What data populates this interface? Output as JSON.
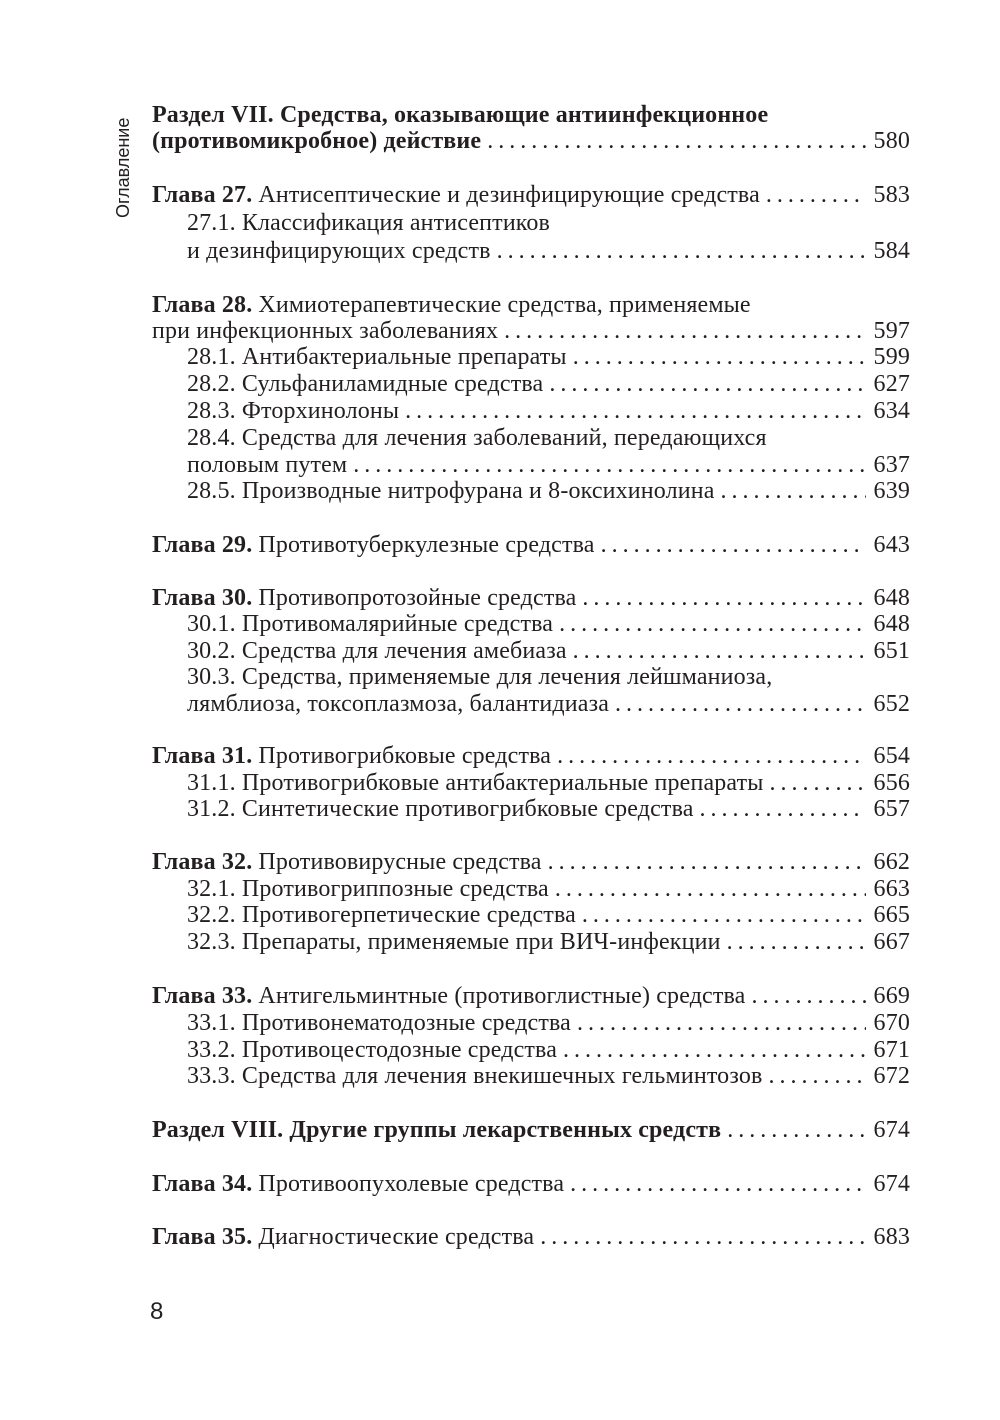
{
  "running_head": "Оглавление",
  "page_number": "8",
  "toc": [
    {
      "lines": [
        {
          "bold": "Раздел VII. Средства, оказывающие антиинфекционное",
          "text": ""
        },
        {
          "bold": "(противомикробное) действие",
          "text": "",
          "page": "580"
        }
      ]
    },
    {
      "lines": [
        {
          "bold": "Глава 27.",
          "text": "Антисептические и дезинфицирующие средства",
          "page": "583"
        }
      ]
    },
    {
      "sub": true,
      "lines": [
        {
          "text": "27.1. Классификация антисептиков"
        },
        {
          "text": "и дезинфицирующих средств",
          "page": "584"
        }
      ]
    },
    {
      "lines": [
        {
          "bold": "Глава 28.",
          "text": "Химиотерапевтические средства, применяемые"
        },
        {
          "text": "при инфекционных заболеваниях",
          "page": "597"
        }
      ]
    },
    {
      "sub": true,
      "lines": [
        {
          "text": "28.1. Антибактериальные препараты",
          "page": "599"
        }
      ]
    },
    {
      "sub": true,
      "lines": [
        {
          "text": "28.2. Сульфаниламидные средства",
          "page": "627"
        }
      ]
    },
    {
      "sub": true,
      "lines": [
        {
          "text": "28.3. Фторхинолоны",
          "page": "634"
        }
      ]
    },
    {
      "sub": true,
      "lines": [
        {
          "text": "28.4. Средства для лечения заболеваний, передающихся"
        },
        {
          "text": "половым путем",
          "page": "637"
        }
      ]
    },
    {
      "sub": true,
      "lines": [
        {
          "text": "28.5. Производные нитрофурана и 8-оксихинолина",
          "page": "639"
        }
      ]
    },
    {
      "lines": [
        {
          "bold": "Глава 29.",
          "text": "Противотуберкулезные средства",
          "page": "643"
        }
      ]
    },
    {
      "lines": [
        {
          "bold": "Глава 30.",
          "text": "Противопротозойные средства",
          "page": "648"
        }
      ]
    },
    {
      "sub": true,
      "lines": [
        {
          "text": "30.1. Противомалярийные средства",
          "page": "648"
        }
      ]
    },
    {
      "sub": true,
      "lines": [
        {
          "text": "30.2. Средства для лечения амебиаза",
          "page": "651"
        }
      ]
    },
    {
      "sub": true,
      "lines": [
        {
          "text": "30.3. Средства, применяемые для лечения лейшманиоза,"
        },
        {
          "text": "лямблиоза, токсоплазмоза, балантидиаза",
          "page": "652"
        }
      ]
    },
    {
      "lines": [
        {
          "bold": "Глава 31.",
          "text": "Противогрибковые средства",
          "page": "654"
        }
      ]
    },
    {
      "sub": true,
      "lines": [
        {
          "text": "31.1. Противогрибковые антибактериальные препараты",
          "page": "656"
        }
      ]
    },
    {
      "sub": true,
      "lines": [
        {
          "text": "31.2. Синтетические противогрибковые средства",
          "page": "657"
        }
      ]
    },
    {
      "lines": [
        {
          "bold": "Глава 32.",
          "text": "Противовирусные средства",
          "page": "662"
        }
      ]
    },
    {
      "sub": true,
      "lines": [
        {
          "text": "32.1. Противогриппозные средства",
          "page": "663"
        }
      ]
    },
    {
      "sub": true,
      "lines": [
        {
          "text": "32.2. Противогерпетические средства",
          "page": "665"
        }
      ]
    },
    {
      "sub": true,
      "lines": [
        {
          "text": "32.3. Препараты, применяемые при ВИЧ-инфекции",
          "page": "667"
        }
      ]
    },
    {
      "lines": [
        {
          "bold": "Глава 33.",
          "text": "Антигельминтные (противоглистные) средства",
          "page": "669"
        }
      ]
    },
    {
      "sub": true,
      "lines": [
        {
          "text": "33.1. Противонематодозные средства",
          "page": "670"
        }
      ]
    },
    {
      "sub": true,
      "lines": [
        {
          "text": "33.2. Противоцестодозные средства",
          "page": "671"
        }
      ]
    },
    {
      "sub": true,
      "lines": [
        {
          "text": "33.3. Средства для лечения внекишечных гельминтозов",
          "page": "672"
        }
      ]
    },
    {
      "lines": [
        {
          "bold": "Раздел VIII. Другие группы лекарственных средств",
          "text": "",
          "page": "674"
        }
      ]
    },
    {
      "lines": [
        {
          "bold": "Глава 34.",
          "text": "Противоопухолевые средства",
          "page": "674"
        }
      ]
    },
    {
      "lines": [
        {
          "bold": "Глава 35.",
          "text": "Диагностические средства",
          "page": "683"
        }
      ]
    }
  ]
}
